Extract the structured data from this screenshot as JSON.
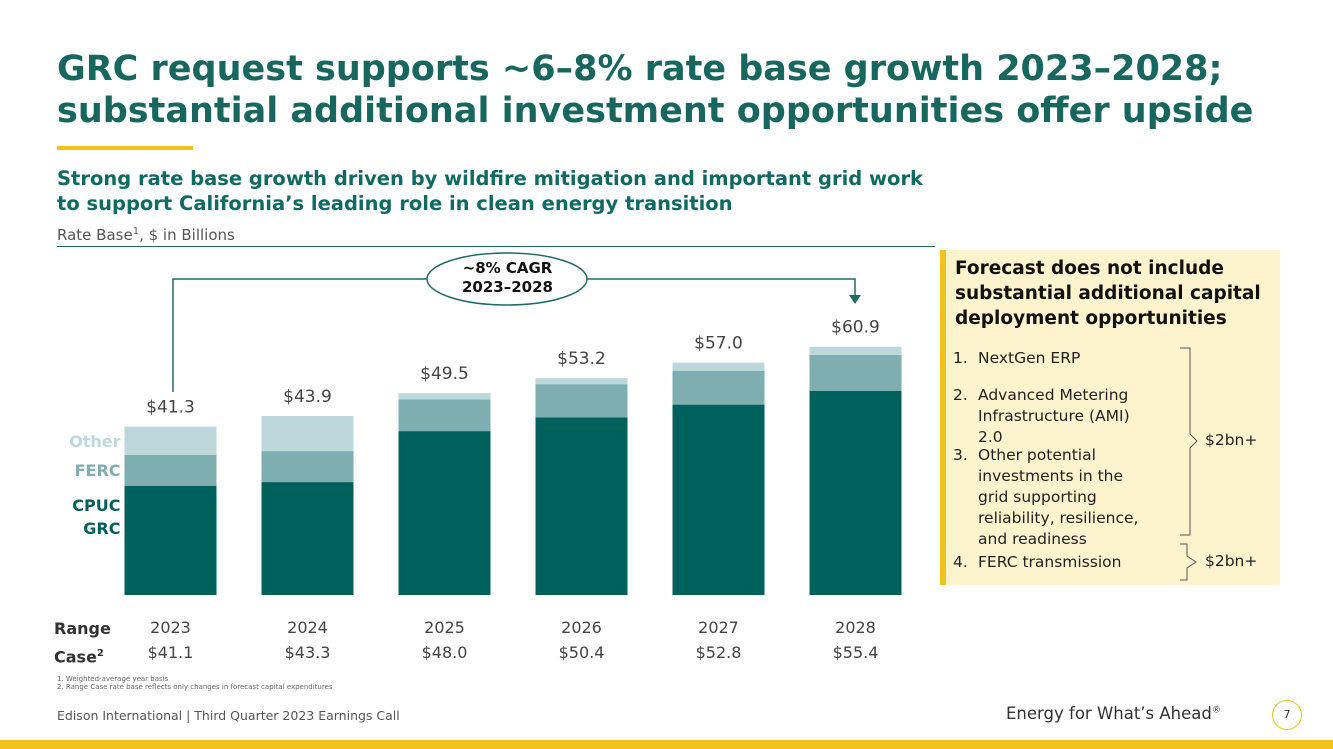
{
  "title": "GRC request supports ~6–8% rate base growth 2023–2028; substantial additional investment opportunities offer upside",
  "chart_data": {
    "type": "bar",
    "stacked": true,
    "title": "Strong rate base growth driven by wildfire mitigation and important grid work to support California’s leading role in clean energy transition",
    "y_label": "Rate Base",
    "y_label_footnote": "1",
    "y_label_units": ", $ in Billions",
    "categories": [
      "2023",
      "2024",
      "2025",
      "2026",
      "2027",
      "2028"
    ],
    "series": [
      {
        "name": "CPUC GRC",
        "color": "#00605c",
        "values": [
          26.8,
          27.7,
          40.2,
          43.6,
          46.7,
          50.1
        ]
      },
      {
        "name": "FERC",
        "color": "#7eaeb0",
        "values": [
          7.6,
          7.6,
          7.8,
          8.1,
          8.3,
          8.8
        ]
      },
      {
        "name": "Other",
        "color": "#bdd8da",
        "values": [
          6.9,
          8.6,
          1.5,
          1.5,
          2.0,
          2.0
        ]
      }
    ],
    "totals": {
      "values": [
        41.3,
        43.9,
        49.5,
        53.2,
        57.0,
        60.9
      ],
      "value_labels": [
        "$41.3",
        "$43.9",
        "$49.5",
        "$53.2",
        "$57.0",
        "$60.9"
      ]
    },
    "ylim": [
      0,
      65
    ],
    "annotation": {
      "lines": [
        "~8% CAGR",
        "2023–2028"
      ]
    },
    "range_case": {
      "label_lines": [
        "Range",
        "Case"
      ],
      "footnote": "2",
      "values": [
        "$41.1",
        "$43.3",
        "$48.0",
        "$50.4",
        "$52.8",
        "$55.4"
      ]
    }
  },
  "footnotes": [
    "1.  Weighted-average year basis",
    "2.  Range Case rate base reflects only changes in forecast capital expenditures"
  ],
  "sidebar": {
    "title": "Forecast does not include substantial additional capital deployment opportunities",
    "items": [
      {
        "number": "1.",
        "text": "NextGen ERP"
      },
      {
        "number": "2.",
        "text": "Advanced Metering Infrastructure (AMI) 2.0"
      },
      {
        "number": "3.",
        "text": "Other potential investments in the grid supporting reliability, resilience, and readiness"
      },
      {
        "number": "4.",
        "text": "FERC transmission"
      }
    ],
    "groups": [
      "$2bn+",
      "$2bn+"
    ]
  },
  "footer": {
    "text": "Edison International |  Third Quarter 2023 Earnings Call",
    "tagline": "Energy for What’s Ahead",
    "tagline_mark": "®",
    "page": "7"
  }
}
